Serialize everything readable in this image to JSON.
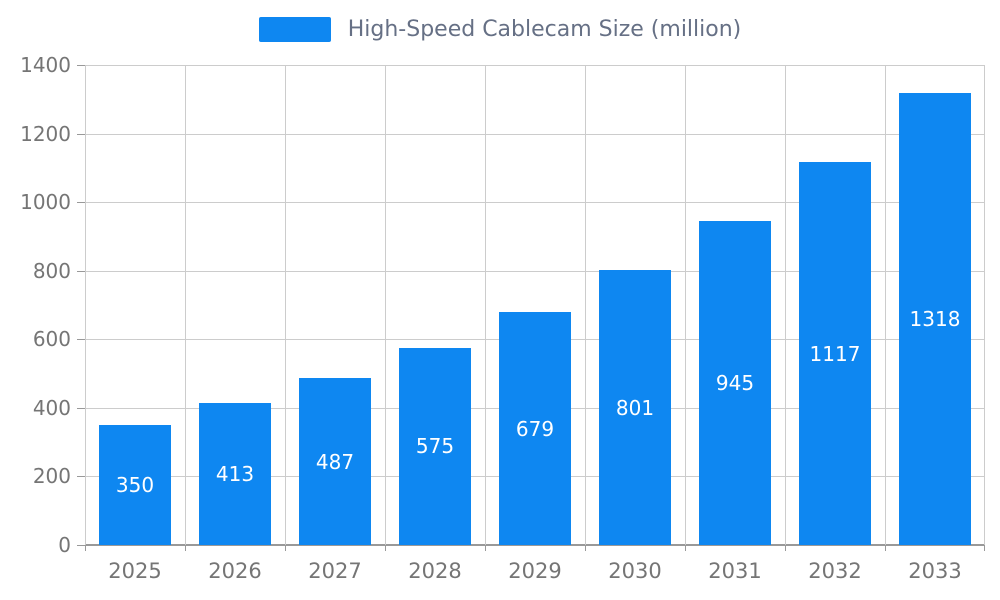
{
  "chart_data": {
    "type": "bar",
    "title": "High-Speed Cablecam Size (million)",
    "categories": [
      "2025",
      "2026",
      "2027",
      "2028",
      "2029",
      "2030",
      "2031",
      "2032",
      "2033"
    ],
    "values": [
      350,
      413,
      487,
      575,
      679,
      801,
      945,
      1117,
      1318
    ],
    "xlabel": "",
    "ylabel": "",
    "ylim": [
      0,
      1400
    ],
    "ytick_step": 200,
    "grid": true,
    "legend_position": "top"
  },
  "colors": {
    "bar": "#0e87f1",
    "axis_text": "#757575",
    "grid": "#cccccc",
    "axis_line": "#999999",
    "legend_text": "#667085",
    "bar_label": "#ffffff",
    "background": "#ffffff"
  }
}
